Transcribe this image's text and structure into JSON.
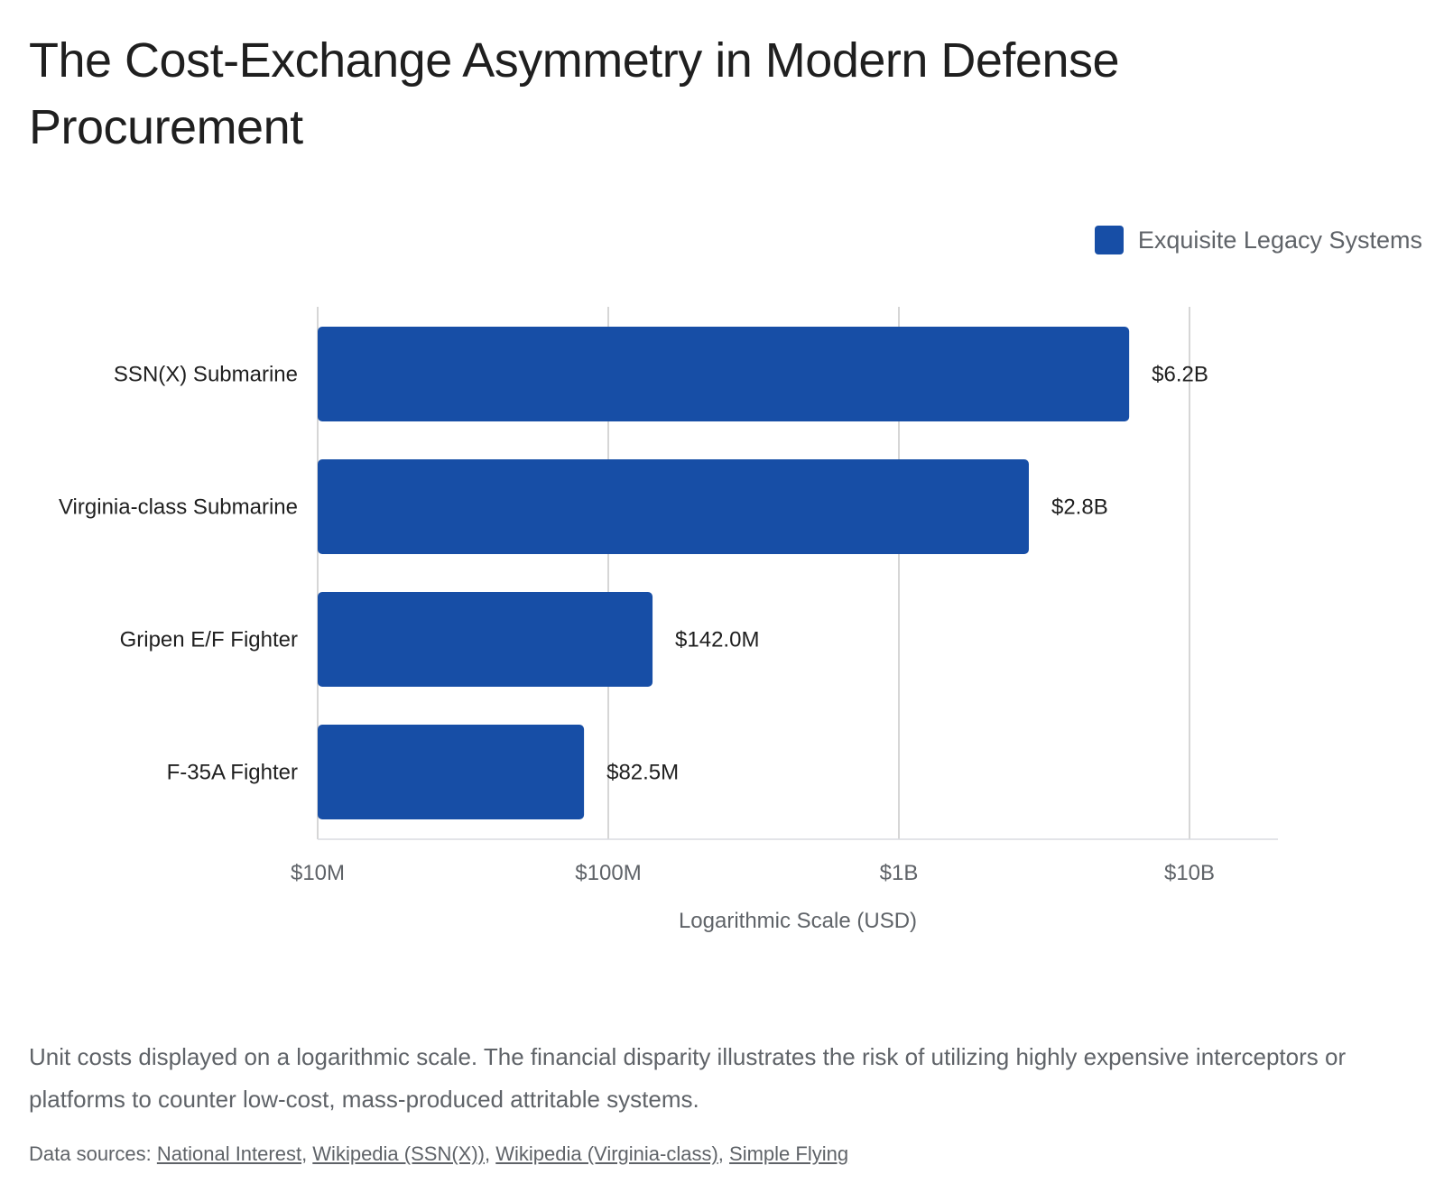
{
  "title": "The Cost-Exchange Asymmetry in Modern Defense Procurement",
  "chart_data": {
    "type": "bar",
    "orientation": "horizontal",
    "categories": [
      "SSN(X) Submarine",
      "Virginia-class Submarine",
      "Gripen E/F Fighter",
      "F-35A Fighter"
    ],
    "series": [
      {
        "name": "Exquisite Legacy Systems",
        "values": [
          6200000000,
          2800000000,
          142000000,
          82500000
        ],
        "color": "#174ea6"
      }
    ],
    "data_labels": [
      "$6.2B",
      "$2.8B",
      "$142.0M",
      "$82.5M"
    ],
    "x_scale": "log",
    "xlim": [
      10000000,
      30000000000
    ],
    "x_ticks": [
      10000000,
      100000000,
      1000000000,
      10000000000
    ],
    "x_tick_labels": [
      "$10M",
      "$100M",
      "$1B",
      "$10B"
    ],
    "xlabel": "Logarithmic Scale (USD)",
    "ylabel": "",
    "grid": true,
    "legend_position": "top-right"
  },
  "note": "Unit costs displayed on a logarithmic scale. The financial disparity illustrates the risk of utilizing highly expensive interceptors or platforms to counter low-cost, mass-produced attritable systems.",
  "sources": {
    "prefix": "Data sources:",
    "links": [
      "National Interest",
      "Wikipedia (SSN(X))",
      "Wikipedia (Virginia-class)",
      "Simple Flying"
    ]
  }
}
